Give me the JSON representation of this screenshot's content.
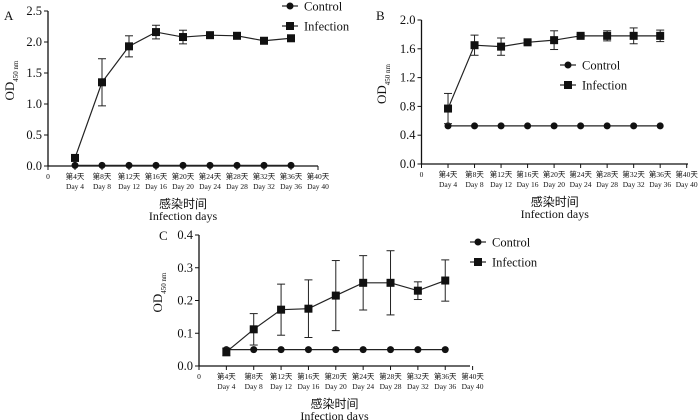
{
  "chart_data": [
    {
      "panel": "A",
      "type": "line",
      "categories": [
        "0",
        "第4天\nDay 4",
        "第8天\nDay 8",
        "第12天\nDay 12",
        "第16天\nDay 16",
        "第20天\nDay 20",
        "第24天\nDay 24",
        "第28天\nDay 28",
        "第32天\nDay 32",
        "第36天\nDay 36",
        "第40天\nDay 40"
      ],
      "x": [
        4,
        8,
        12,
        16,
        20,
        24,
        28,
        32,
        36
      ],
      "xlabel": [
        "感染时间",
        "Infection days"
      ],
      "ylabel": "OD",
      "ylabel_sub": "450 nm",
      "ylim": [
        0,
        2.5
      ],
      "yticks": [
        "0.0",
        "0.5",
        "1.0",
        "1.5",
        "2.0",
        "2.5"
      ],
      "legend_position": "top-right",
      "series": [
        {
          "name": "Control",
          "marker": "circle",
          "values": [
            0.01,
            0.01,
            0.01,
            0.01,
            0.01,
            0.01,
            0.01,
            0.01,
            0.01
          ],
          "errors": [
            0,
            0,
            0,
            0,
            0,
            0,
            0,
            0,
            0
          ]
        },
        {
          "name": "Infection",
          "marker": "square",
          "values": [
            0.13,
            1.35,
            1.93,
            2.16,
            2.08,
            2.11,
            2.1,
            2.02,
            2.06
          ],
          "errors": [
            0.02,
            0.38,
            0.17,
            0.11,
            0.11,
            0.03,
            0.03,
            0.02,
            0.03
          ]
        }
      ]
    },
    {
      "panel": "B",
      "type": "line",
      "categories": [
        "0",
        "第4天\nDay 4",
        "第8天\nDay 8",
        "第12天\nDay 12",
        "第16天\nDay 16",
        "第20天\nDay 20",
        "第24天\nDay 24",
        "第28天\nDay 28",
        "第32天\nDay 32",
        "第36天\nDay 36",
        "第40天\nDay 40"
      ],
      "x": [
        4,
        8,
        12,
        16,
        20,
        24,
        28,
        32,
        36
      ],
      "xlabel": [
        "感染时间",
        "Infection days"
      ],
      "ylabel": "OD",
      "ylabel_sub": "450 nm",
      "ylim": [
        0,
        2.0
      ],
      "yticks": [
        "0.0",
        "0.4",
        "0.8",
        "1.2",
        "1.6",
        "2.0"
      ],
      "legend_position": "center-right",
      "series": [
        {
          "name": "Control",
          "marker": "circle",
          "values": [
            0.53,
            0.53,
            0.53,
            0.53,
            0.53,
            0.53,
            0.53,
            0.53,
            0.53
          ],
          "errors": [
            0,
            0,
            0,
            0,
            0,
            0,
            0,
            0,
            0
          ]
        },
        {
          "name": "Infection",
          "marker": "square",
          "values": [
            0.77,
            1.65,
            1.63,
            1.69,
            1.72,
            1.78,
            1.78,
            1.78,
            1.78
          ],
          "errors": [
            0.21,
            0.14,
            0.12,
            0.03,
            0.13,
            0.02,
            0.07,
            0.11,
            0.08
          ]
        }
      ]
    },
    {
      "panel": "C",
      "type": "line",
      "categories": [
        "0",
        "第4天\nDay 4",
        "第8天\nDay 8",
        "第12天\nDay 12",
        "第16天\nDay 16",
        "第20天\nDay 20",
        "第24天\nDay 24",
        "第28天\nDay 28",
        "第32天\nDay 32",
        "第36天\nDay 36",
        "第40天\nDay 40"
      ],
      "x": [
        4,
        8,
        12,
        16,
        20,
        24,
        28,
        32,
        36
      ],
      "xlabel": [
        "感染时间",
        "Infection days"
      ],
      "ylabel": "OD",
      "ylabel_sub": "450 nm",
      "ylim": [
        0,
        0.4
      ],
      "yticks": [
        "0.0",
        "0.1",
        "0.2",
        "0.3",
        "0.4"
      ],
      "legend_position": "top-right",
      "series": [
        {
          "name": "Control",
          "marker": "circle",
          "values": [
            0.05,
            0.05,
            0.05,
            0.05,
            0.05,
            0.05,
            0.05,
            0.05,
            0.05
          ],
          "errors": [
            0,
            0,
            0,
            0,
            0,
            0,
            0,
            0,
            0
          ]
        },
        {
          "name": "Infection",
          "marker": "square",
          "values": [
            0.043,
            0.112,
            0.172,
            0.175,
            0.215,
            0.254,
            0.254,
            0.23,
            0.261
          ],
          "errors": [
            0.012,
            0.048,
            0.078,
            0.088,
            0.107,
            0.083,
            0.098,
            0.027,
            0.063
          ]
        }
      ]
    }
  ]
}
